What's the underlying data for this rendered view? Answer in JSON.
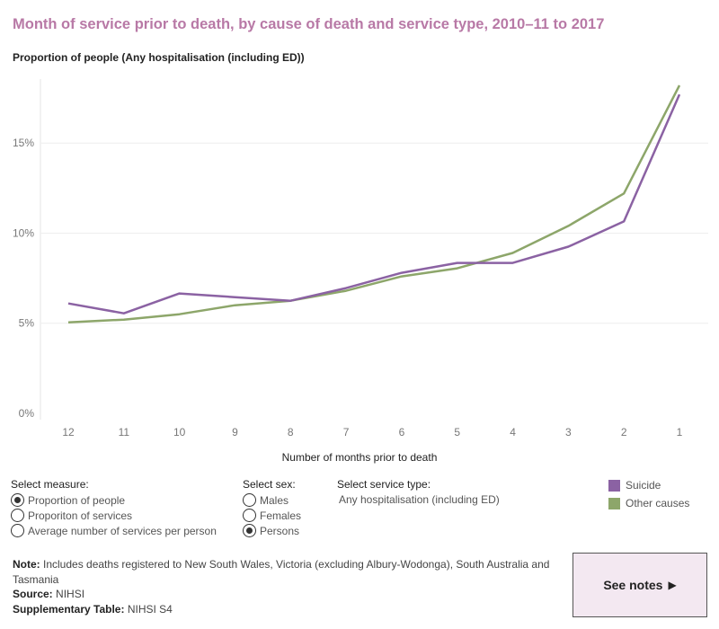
{
  "title": "Month of service prior to death, by cause of death and service type, 2010–11 to 2017",
  "colors": {
    "title": "#b879a6",
    "suicide": "#8b62a3",
    "other_causes": "#8da66a",
    "see_notes_bg": "#f3e8f1"
  },
  "chart_data": {
    "type": "line",
    "title": "Proportion of people (Any hospitalisation (including ED))",
    "xlabel": "Number of months prior to death",
    "ylabel": "",
    "categories": [
      "12",
      "11",
      "10",
      "9",
      "8",
      "7",
      "6",
      "5",
      "4",
      "3",
      "2",
      "1"
    ],
    "y_ticks": [
      0,
      5,
      10,
      15
    ],
    "y_tick_labels": [
      "0%",
      "5%",
      "10%",
      "15%"
    ],
    "ylim": [
      0,
      18.7
    ],
    "grid": true,
    "legend_position": "right",
    "series": [
      {
        "name": "Suicide",
        "color": "#8b62a3",
        "values": [
          6.1,
          5.55,
          6.65,
          6.45,
          6.25,
          6.95,
          7.8,
          8.35,
          8.35,
          9.25,
          10.65,
          17.7
        ]
      },
      {
        "name": "Other causes",
        "color": "#8da66a",
        "values": [
          5.05,
          5.2,
          5.5,
          6.0,
          6.25,
          6.8,
          7.6,
          8.05,
          8.9,
          10.4,
          12.2,
          18.2
        ]
      }
    ]
  },
  "controls": {
    "measure": {
      "label": "Select measure:",
      "options": [
        "Proportion of people",
        "Proporiton of services",
        "Average number of services per person"
      ],
      "selected": "Proportion of people"
    },
    "sex": {
      "label": "Select sex:",
      "options": [
        "Males",
        "Females",
        "Persons"
      ],
      "selected": "Persons"
    },
    "service_type": {
      "label": "Select service type:",
      "value": "Any hospitalisation (including ED)"
    }
  },
  "notes": {
    "note_label": "Note:",
    "note_text": " Includes deaths registered to New South Wales, Victoria (excluding Albury-Wodonga), South Australia and Tasmania",
    "source_label": "Source:",
    "source_text": " NIHSI",
    "supp_label": "Supplementary Table:",
    "supp_text": " NIHSI S4"
  },
  "see_notes": {
    "label": "See notes",
    "icon": "play-triangle-icon"
  }
}
